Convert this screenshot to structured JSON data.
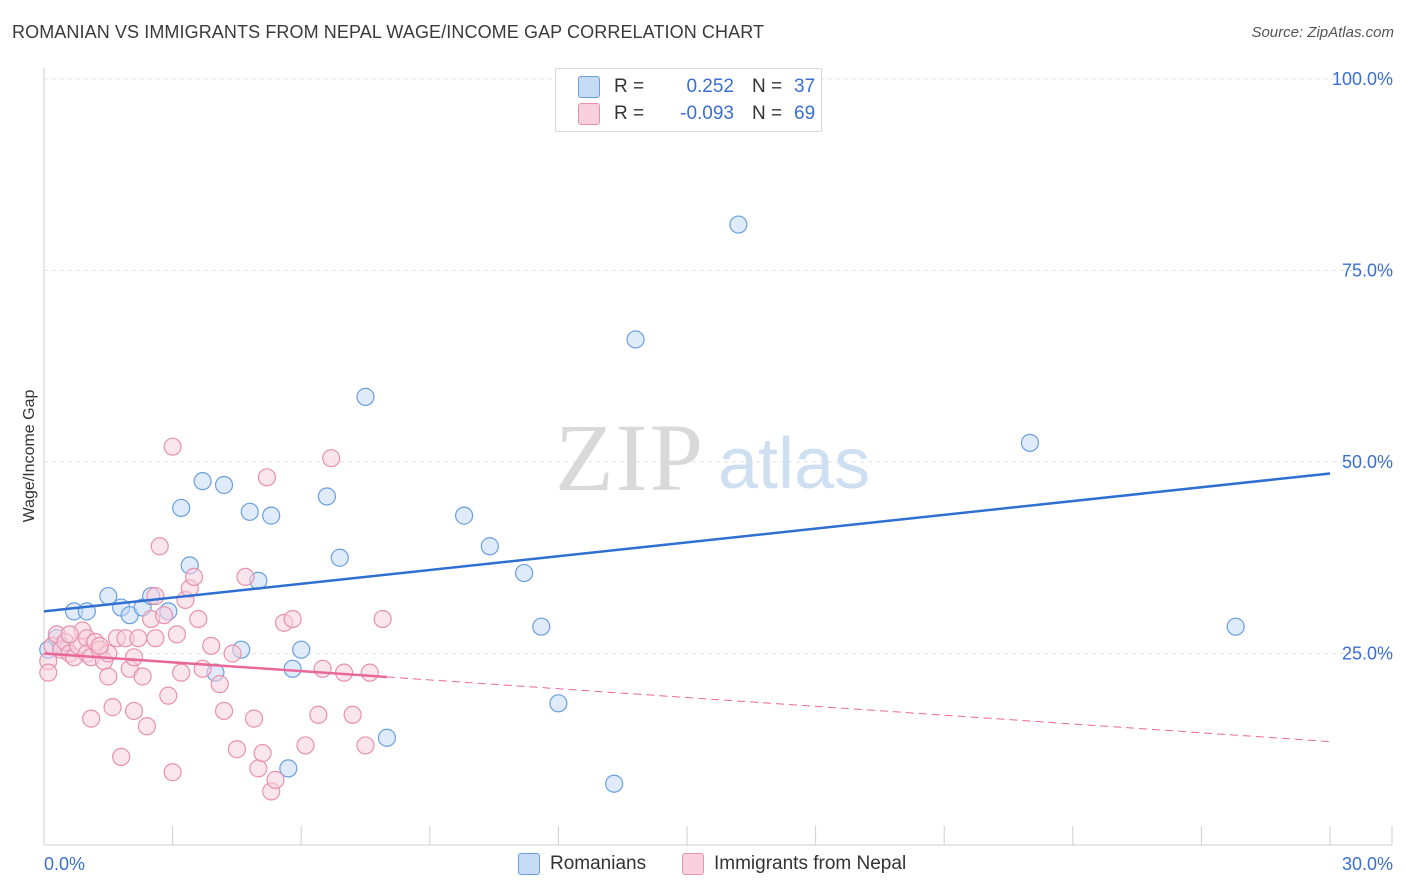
{
  "title": "ROMANIAN VS IMMIGRANTS FROM NEPAL WAGE/INCOME GAP CORRELATION CHART",
  "source": "Source: ZipAtlas.com",
  "watermark": {
    "zip": "ZIP",
    "atlas": "atlas"
  },
  "legend": {
    "rows": [
      {
        "r_label": "R =",
        "r_value": "0.252",
        "n_label": "N =",
        "n_value": "37"
      },
      {
        "r_label": "R =",
        "r_value": "-0.093",
        "n_label": "N =",
        "n_value": "69"
      }
    ]
  },
  "chart_data": {
    "type": "scatter",
    "title": "ROMANIAN VS IMMIGRANTS FROM NEPAL WAGE/INCOME GAP CORRELATION CHART",
    "xlabel": "",
    "ylabel": "Wage/Income Gap",
    "xlim": [
      0,
      30
    ],
    "ylim": [
      0,
      100
    ],
    "x_tick_labels": [
      "0.0%",
      "30.0%"
    ],
    "y_tick_labels": [
      "25.0%",
      "50.0%",
      "75.0%",
      "100.0%"
    ],
    "y_ticks": [
      25,
      50,
      75,
      100
    ],
    "series": [
      {
        "name": "Romanians",
        "color": "#6a9fe0",
        "fill": "#c5daf5",
        "trend_color": "#2f6fd0",
        "trend": {
          "x0": 0,
          "y0": 30.5,
          "x1": 30,
          "y1": 48.5,
          "dash_from": null
        },
        "points": [
          [
            0.1,
            25.5
          ],
          [
            0.3,
            27
          ],
          [
            0.4,
            26
          ],
          [
            0.7,
            30.5
          ],
          [
            1.0,
            30.5
          ],
          [
            1.5,
            32.5
          ],
          [
            1.8,
            31
          ],
          [
            2.0,
            30
          ],
          [
            2.3,
            31
          ],
          [
            2.5,
            32.5
          ],
          [
            2.9,
            30.5
          ],
          [
            3.2,
            44
          ],
          [
            3.4,
            36.5
          ],
          [
            3.7,
            47.5
          ],
          [
            4.0,
            22.5
          ],
          [
            4.2,
            47
          ],
          [
            4.6,
            25.5
          ],
          [
            4.8,
            43.5
          ],
          [
            5.0,
            34.5
          ],
          [
            5.3,
            43
          ],
          [
            5.7,
            10
          ],
          [
            5.8,
            23
          ],
          [
            6.0,
            25.5
          ],
          [
            6.6,
            45.5
          ],
          [
            6.9,
            37.5
          ],
          [
            7.5,
            58.5
          ],
          [
            8.0,
            14
          ],
          [
            9.8,
            43
          ],
          [
            10.4,
            39
          ],
          [
            11.2,
            35.5
          ],
          [
            11.6,
            28.5
          ],
          [
            12.0,
            18.5
          ],
          [
            13.3,
            8
          ],
          [
            13.8,
            66
          ],
          [
            16.2,
            81
          ],
          [
            23.0,
            52.5
          ],
          [
            27.8,
            28.5
          ]
        ]
      },
      {
        "name": "Immigrants from Nepal",
        "color": "#e891ad",
        "fill": "#f8d0dd",
        "trend_color": "#e8689a",
        "trend": {
          "x0": 0,
          "y0": 25,
          "x1": 30,
          "y1": 13.5,
          "dash_from": 8.0
        },
        "points": [
          [
            0.1,
            24
          ],
          [
            0.1,
            22.5
          ],
          [
            0.2,
            26
          ],
          [
            0.3,
            27.5
          ],
          [
            0.4,
            25.5
          ],
          [
            0.5,
            26.5
          ],
          [
            0.6,
            25
          ],
          [
            0.7,
            24.5
          ],
          [
            0.8,
            26
          ],
          [
            0.9,
            28
          ],
          [
            1.0,
            27
          ],
          [
            1.0,
            25
          ],
          [
            1.1,
            24.5
          ],
          [
            1.1,
            16.5
          ],
          [
            1.2,
            26.5
          ],
          [
            1.3,
            25.5
          ],
          [
            1.4,
            24
          ],
          [
            1.5,
            25
          ],
          [
            1.5,
            22
          ],
          [
            1.6,
            18
          ],
          [
            1.7,
            27
          ],
          [
            1.8,
            11.5
          ],
          [
            1.9,
            27
          ],
          [
            2.0,
            23
          ],
          [
            2.1,
            24.5
          ],
          [
            2.1,
            17.5
          ],
          [
            2.2,
            27
          ],
          [
            2.3,
            22
          ],
          [
            2.4,
            15.5
          ],
          [
            2.5,
            29.5
          ],
          [
            2.6,
            32.5
          ],
          [
            2.7,
            39
          ],
          [
            2.8,
            30
          ],
          [
            2.9,
            19.5
          ],
          [
            3.0,
            9.5
          ],
          [
            3.1,
            27.5
          ],
          [
            3.2,
            22.5
          ],
          [
            3.3,
            32
          ],
          [
            3.4,
            33.5
          ],
          [
            3.5,
            35
          ],
          [
            3.6,
            29.5
          ],
          [
            3.7,
            23
          ],
          [
            3.9,
            26
          ],
          [
            4.1,
            21
          ],
          [
            4.2,
            17.5
          ],
          [
            4.4,
            25
          ],
          [
            4.5,
            12.5
          ],
          [
            4.7,
            35
          ],
          [
            4.9,
            16.5
          ],
          [
            5.0,
            10
          ],
          [
            5.1,
            12
          ],
          [
            5.2,
            48
          ],
          [
            5.3,
            7
          ],
          [
            5.4,
            8.5
          ],
          [
            5.6,
            29
          ],
          [
            5.8,
            29.5
          ],
          [
            6.1,
            13
          ],
          [
            6.4,
            17
          ],
          [
            6.5,
            23
          ],
          [
            6.7,
            50.5
          ],
          [
            7.0,
            22.5
          ],
          [
            7.2,
            17
          ],
          [
            7.5,
            13
          ],
          [
            7.6,
            22.5
          ],
          [
            7.9,
            29.5
          ],
          [
            3.0,
            52
          ],
          [
            0.6,
            27.5
          ],
          [
            1.3,
            26
          ],
          [
            2.6,
            27
          ]
        ]
      }
    ],
    "legend_items": [
      "Romanians",
      "Immigrants from Nepal"
    ]
  }
}
